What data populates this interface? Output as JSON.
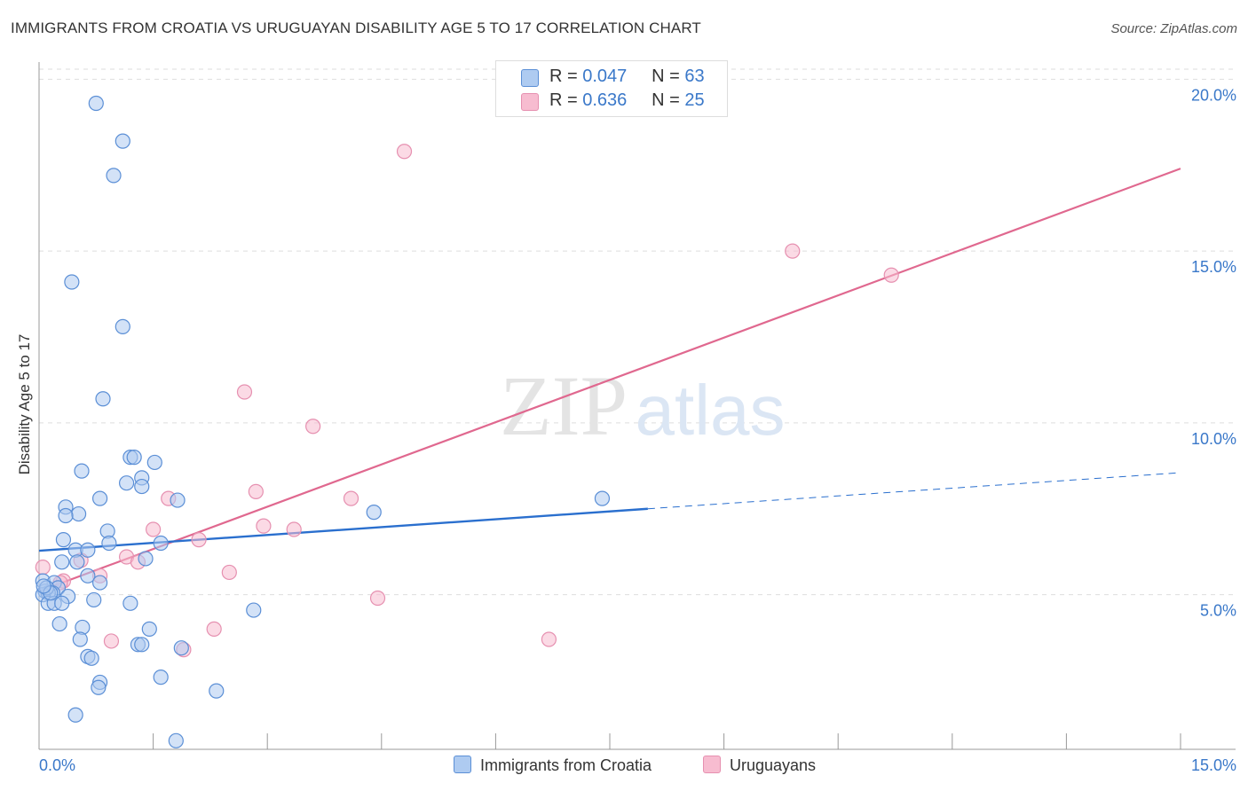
{
  "header": {
    "title": "IMMIGRANTS FROM CROATIA VS URUGUAYAN DISABILITY AGE 5 TO 17 CORRELATION CHART",
    "source": "Source: ZipAtlas.com"
  },
  "watermark": {
    "left": "ZIP",
    "right": "atlas"
  },
  "legend": {
    "rows": [
      {
        "r_label": "R =",
        "r_value": "0.047",
        "n_label": "N =",
        "n_value": "63"
      },
      {
        "r_label": "R =",
        "r_value": "0.636",
        "n_label": "N =",
        "n_value": "25"
      }
    ]
  },
  "colors": {
    "blue_fill": "#aecbf1",
    "blue_stroke": "#5b8fd6",
    "blue_line": "#2a6fce",
    "pink_fill": "#f7bcd0",
    "pink_stroke": "#e690b0",
    "pink_line": "#e0688f",
    "tick_label": "#3a78c9",
    "grid": "#dddddd"
  },
  "chart_data": {
    "type": "scatter",
    "title": "IMMIGRANTS FROM CROATIA VS URUGUAYAN DISABILITY AGE 5 TO 17 CORRELATION CHART",
    "xlabel": "",
    "ylabel": "Disability Age 5 to 17",
    "xlim": [
      0,
      15
    ],
    "ylim": [
      0.5,
      20.5
    ],
    "x_tick_labels": [
      {
        "value": 0,
        "label": "0.0%"
      },
      {
        "value": 15,
        "label": "15.0%"
      }
    ],
    "y_tick_labels": [
      {
        "value": 5,
        "label": "5.0%"
      },
      {
        "value": 10,
        "label": "10.0%"
      },
      {
        "value": 15,
        "label": "15.0%"
      },
      {
        "value": 20,
        "label": "20.0%"
      }
    ],
    "grid": true,
    "legend_position": "bottom",
    "series": [
      {
        "name": "Immigrants from Croatia",
        "color": "#5b8fd6",
        "points": [
          [
            0.75,
            19.3
          ],
          [
            1.1,
            18.2
          ],
          [
            0.98,
            17.2
          ],
          [
            0.43,
            14.1
          ],
          [
            1.1,
            12.8
          ],
          [
            0.84,
            10.7
          ],
          [
            1.2,
            9.0
          ],
          [
            1.25,
            9.0
          ],
          [
            1.52,
            8.85
          ],
          [
            0.56,
            8.6
          ],
          [
            1.35,
            8.4
          ],
          [
            1.15,
            8.25
          ],
          [
            1.35,
            8.15
          ],
          [
            0.8,
            7.8
          ],
          [
            1.82,
            7.75
          ],
          [
            0.35,
            7.55
          ],
          [
            0.52,
            7.35
          ],
          [
            0.35,
            7.3
          ],
          [
            4.4,
            7.4
          ],
          [
            7.4,
            7.8
          ],
          [
            0.9,
            6.85
          ],
          [
            0.32,
            6.6
          ],
          [
            0.92,
            6.5
          ],
          [
            1.6,
            6.5
          ],
          [
            0.48,
            6.3
          ],
          [
            0.64,
            6.3
          ],
          [
            1.4,
            6.05
          ],
          [
            0.5,
            5.95
          ],
          [
            0.3,
            5.95
          ],
          [
            0.64,
            5.55
          ],
          [
            0.05,
            5.4
          ],
          [
            0.2,
            5.35
          ],
          [
            0.8,
            5.35
          ],
          [
            0.25,
            5.2
          ],
          [
            0.08,
            5.1
          ],
          [
            0.18,
            5.05
          ],
          [
            0.12,
            5.05
          ],
          [
            0.05,
            5.0
          ],
          [
            0.38,
            4.95
          ],
          [
            0.72,
            4.85
          ],
          [
            0.12,
            4.75
          ],
          [
            0.2,
            4.75
          ],
          [
            0.3,
            4.75
          ],
          [
            1.2,
            4.75
          ],
          [
            2.82,
            4.55
          ],
          [
            0.27,
            4.15
          ],
          [
            0.57,
            4.05
          ],
          [
            1.45,
            4.0
          ],
          [
            0.54,
            3.7
          ],
          [
            1.3,
            3.55
          ],
          [
            1.35,
            3.55
          ],
          [
            1.87,
            3.45
          ],
          [
            0.64,
            3.2
          ],
          [
            0.69,
            3.15
          ],
          [
            1.6,
            2.6
          ],
          [
            0.8,
            2.45
          ],
          [
            0.78,
            2.3
          ],
          [
            2.33,
            2.2
          ],
          [
            0.48,
            1.5
          ],
          [
            1.8,
            0.75
          ],
          [
            0.1,
            5.2
          ],
          [
            0.15,
            5.05
          ],
          [
            0.06,
            5.25
          ]
        ]
      },
      {
        "name": "Uruguayans",
        "color": "#e690b0",
        "points": [
          [
            4.8,
            17.9
          ],
          [
            9.9,
            15.0
          ],
          [
            11.2,
            14.3
          ],
          [
            2.7,
            10.9
          ],
          [
            3.6,
            9.9
          ],
          [
            2.85,
            8.0
          ],
          [
            4.1,
            7.8
          ],
          [
            1.7,
            7.8
          ],
          [
            2.95,
            7.0
          ],
          [
            3.35,
            6.9
          ],
          [
            1.5,
            6.9
          ],
          [
            2.1,
            6.6
          ],
          [
            1.15,
            6.1
          ],
          [
            1.3,
            5.95
          ],
          [
            0.55,
            6.0
          ],
          [
            2.5,
            5.65
          ],
          [
            0.8,
            5.55
          ],
          [
            0.32,
            5.4
          ],
          [
            0.28,
            5.35
          ],
          [
            0.05,
            5.8
          ],
          [
            4.45,
            4.9
          ],
          [
            2.3,
            4.0
          ],
          [
            6.7,
            3.7
          ],
          [
            0.95,
            3.65
          ],
          [
            1.9,
            3.4
          ]
        ]
      }
    ],
    "trend_lines": [
      {
        "series": "Immigrants from Croatia",
        "solid": [
          [
            0,
            6.28
          ],
          [
            8.0,
            7.5
          ]
        ],
        "dashed": [
          [
            8.0,
            7.5
          ],
          [
            15,
            8.55
          ]
        ]
      },
      {
        "series": "Uruguayans",
        "solid": [
          [
            0,
            5.1
          ],
          [
            15,
            17.4
          ]
        ]
      }
    ]
  }
}
